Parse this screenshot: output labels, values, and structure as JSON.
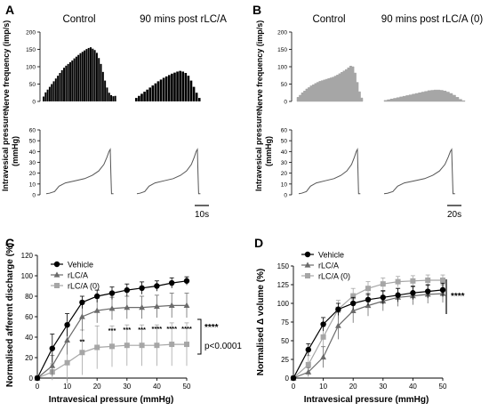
{
  "panels": {
    "A": {
      "letter": "A",
      "conditions": [
        "Control",
        "90 mins post rLC/A"
      ],
      "nerve_ylabel": "Nerve frequency (imp/s)",
      "nerve_yticks": [
        0,
        50,
        100,
        150,
        200
      ],
      "pressure_ylabel": [
        "Intravesical pressure",
        "(mmHg)"
      ],
      "pressure_yticks": [
        0,
        10,
        20,
        30,
        40,
        50,
        60
      ],
      "scalebar": "10s",
      "color": "#000000"
    },
    "B": {
      "letter": "B",
      "conditions": [
        "Control",
        "90 mins post rLC/A (0)"
      ],
      "nerve_ylabel": "Nerve frequency (imp/s)",
      "nerve_yticks": [
        0,
        50,
        100,
        150,
        200
      ],
      "pressure_ylabel": [
        "Intravesical pressure",
        "(mmHg)"
      ],
      "pressure_yticks": [
        0,
        10,
        20,
        30,
        40,
        50,
        60
      ],
      "scalebar": "20s",
      "color": "#a6a6a6"
    },
    "C": {
      "letter": "C",
      "significance": [
        "****",
        "p<0.0001"
      ],
      "point_stars": [
        "**",
        "***",
        "***",
        "***",
        "****",
        "****",
        "****"
      ]
    },
    "D": {
      "letter": "D",
      "significance": [
        "****"
      ]
    }
  },
  "chart_data": [
    {
      "type": "bar",
      "panel": "A",
      "condition": "Control",
      "ylabel": "Nerve frequency (imp/s)",
      "ylim": [
        0,
        200
      ],
      "values": [
        14,
        26,
        34,
        42,
        50,
        58,
        66,
        74,
        82,
        90,
        97,
        103,
        108,
        113,
        118,
        124,
        129,
        134,
        139,
        143,
        147,
        151,
        154,
        156,
        152,
        148,
        140,
        125,
        108,
        85,
        60,
        40,
        25,
        18,
        15,
        16
      ]
    },
    {
      "type": "bar",
      "panel": "A",
      "condition": "90 mins post rLC/A",
      "ylabel": "Nerve frequency (imp/s)",
      "ylim": [
        0,
        200
      ],
      "values": [
        10,
        16,
        22,
        28,
        34,
        40,
        46,
        52,
        58,
        63,
        68,
        72,
        76,
        80,
        83,
        86,
        88,
        86,
        82,
        74,
        60,
        42,
        25,
        10
      ]
    },
    {
      "type": "area",
      "panel": "B",
      "condition": "Control",
      "ylabel": "Nerve frequency (imp/s)",
      "ylim": [
        0,
        200
      ],
      "values": [
        12,
        18,
        25,
        30,
        36,
        40,
        45,
        48,
        52,
        55,
        58,
        60,
        62,
        64,
        66,
        68,
        70,
        73,
        76,
        80,
        84,
        88,
        92,
        97,
        102,
        100,
        82,
        55,
        28,
        10
      ]
    },
    {
      "type": "area",
      "panel": "B",
      "condition": "90 mins post rLC/A (0)",
      "ylabel": "Nerve frequency (imp/s)",
      "ylim": [
        0,
        200
      ],
      "values": [
        3,
        5,
        7,
        9,
        11,
        13,
        15,
        17,
        19,
        21,
        23,
        25,
        27,
        29,
        31,
        32,
        33,
        33,
        32,
        30,
        27,
        23,
        18,
        12,
        6,
        2
      ]
    },
    {
      "type": "line",
      "panel": "A",
      "condition": "Control",
      "ylabel": "Intravesical pressure (mmHg)",
      "ylim": [
        0,
        60
      ],
      "x": [
        0,
        0.05,
        0.13,
        0.2,
        0.3,
        0.45,
        0.6,
        0.72,
        0.82,
        0.9,
        0.95,
        0.98,
        1.0,
        1.01,
        1.02,
        1.05
      ],
      "y": [
        1,
        1.5,
        3,
        8,
        11,
        13,
        15,
        18,
        22,
        28,
        35,
        40,
        42,
        20,
        1,
        1
      ]
    },
    {
      "type": "line",
      "panel": "A",
      "condition": "90 mins post rLC/A",
      "ylabel": "Intravesical pressure (mmHg)",
      "ylim": [
        0,
        60
      ],
      "x": [
        0,
        0.05,
        0.13,
        0.2,
        0.3,
        0.45,
        0.6,
        0.72,
        0.82,
        0.9,
        0.95,
        0.98,
        1.0,
        1.01,
        1.02,
        1.05
      ],
      "y": [
        1,
        1.5,
        3,
        8,
        11,
        13,
        15,
        18,
        22,
        28,
        35,
        40,
        42,
        20,
        1,
        1
      ]
    },
    {
      "type": "line",
      "panel": "B",
      "condition": "Control",
      "ylabel": "Intravesical pressure (mmHg)",
      "ylim": [
        0,
        60
      ],
      "x": [
        0,
        0.05,
        0.13,
        0.2,
        0.3,
        0.45,
        0.6,
        0.72,
        0.82,
        0.9,
        0.95,
        0.98,
        1.0,
        1.01,
        1.02,
        1.05
      ],
      "y": [
        1,
        1.5,
        3,
        8,
        11,
        13,
        15,
        18,
        22,
        28,
        35,
        40,
        42,
        20,
        1,
        1
      ]
    },
    {
      "type": "line",
      "panel": "B",
      "condition": "90 mins post rLC/A (0)",
      "ylabel": "Intravesical pressure (mmHg)",
      "ylim": [
        0,
        60
      ],
      "x": [
        0,
        0.05,
        0.13,
        0.2,
        0.3,
        0.45,
        0.6,
        0.72,
        0.82,
        0.9,
        0.95,
        0.98,
        1.0,
        1.01,
        1.02,
        1.05
      ],
      "y": [
        1,
        1.5,
        3,
        8,
        11,
        13,
        15,
        18,
        22,
        28,
        35,
        40,
        42,
        20,
        1,
        1
      ]
    },
    {
      "type": "line",
      "panel": "C",
      "xlabel": "Intravesical pressure (mmHg)",
      "ylabel": "Normalised afferent discharge (%)",
      "xlim": [
        0,
        50
      ],
      "ylim": [
        0,
        120
      ],
      "xticks": [
        0,
        10,
        20,
        30,
        40,
        50
      ],
      "yticks": [
        0,
        20,
        40,
        60,
        80,
        100,
        120
      ],
      "legend_position": "top-left",
      "x": [
        0,
        5,
        10,
        15,
        20,
        25,
        30,
        35,
        40,
        45,
        50
      ],
      "series": [
        {
          "name": "Vehicle",
          "marker": "circle",
          "color": "#000000",
          "values": [
            0,
            29,
            52,
            74,
            80,
            83,
            86,
            88,
            90,
            93,
            95
          ],
          "error": [
            0,
            14,
            11,
            6,
            6,
            6,
            6,
            6,
            5,
            5,
            4
          ]
        },
        {
          "name": "rLC/A",
          "marker": "triangle",
          "color": "#6b6b6b",
          "values": [
            0,
            12,
            37,
            60,
            66,
            68,
            69,
            69,
            70,
            71,
            71
          ],
          "error": [
            0,
            10,
            14,
            14,
            12,
            11,
            11,
            11,
            11,
            12,
            12
          ]
        },
        {
          "name": "rLC/A (0)",
          "marker": "square",
          "color": "#a6a6a6",
          "values": [
            0,
            6,
            15,
            25,
            30,
            31,
            32,
            32,
            32,
            33,
            33
          ],
          "error": [
            0,
            8,
            20,
            22,
            21,
            20,
            20,
            20,
            20,
            21,
            21
          ]
        }
      ]
    },
    {
      "type": "line",
      "panel": "D",
      "xlabel": "Intravesical pressure (mmHg)",
      "ylabel": "Normalised Δ volume (%)",
      "xlim": [
        0,
        50
      ],
      "ylim": [
        0,
        150
      ],
      "xticks": [
        0,
        10,
        20,
        30,
        40,
        50
      ],
      "yticks": [
        0,
        25,
        50,
        75,
        100,
        125,
        150
      ],
      "legend_position": "top-left",
      "x": [
        0,
        5,
        10,
        15,
        20,
        25,
        30,
        35,
        40,
        45,
        50
      ],
      "series": [
        {
          "name": "Vehicle",
          "marker": "circle",
          "color": "#000000",
          "values": [
            0,
            38,
            72,
            92,
            100,
            105,
            108,
            111,
            114,
            116,
            118
          ],
          "error": [
            0,
            8,
            9,
            8,
            8,
            8,
            9,
            9,
            9,
            9,
            9
          ]
        },
        {
          "name": "rLC/A",
          "marker": "triangle",
          "color": "#6b6b6b",
          "values": [
            0,
            8,
            28,
            70,
            90,
            97,
            103,
            108,
            110,
            112,
            113
          ],
          "error": [
            0,
            6,
            14,
            18,
            16,
            14,
            13,
            12,
            12,
            12,
            12
          ]
        },
        {
          "name": "rLC/A (0)",
          "marker": "square",
          "color": "#a6a6a6",
          "values": [
            0,
            18,
            55,
            92,
            110,
            120,
            126,
            129,
            130,
            131,
            131
          ],
          "error": [
            0,
            12,
            14,
            12,
            10,
            9,
            8,
            7,
            7,
            7,
            7
          ]
        }
      ]
    }
  ]
}
